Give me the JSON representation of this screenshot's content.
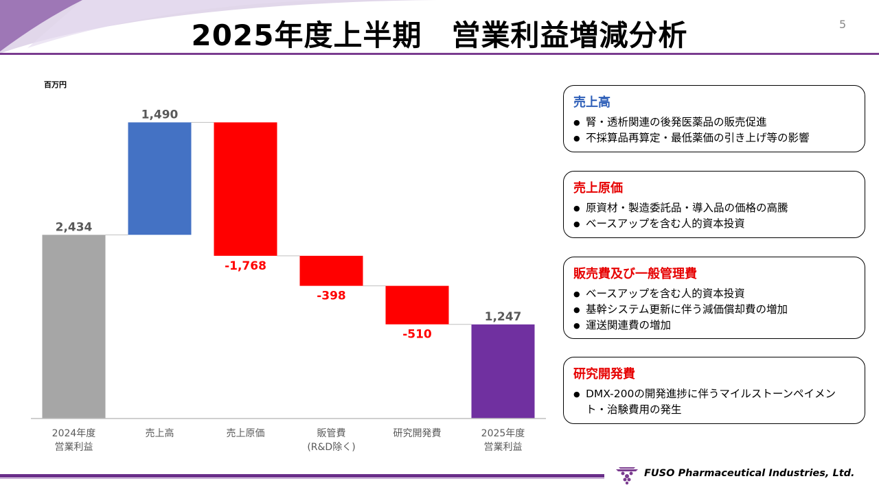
{
  "header": {
    "title": "2025年度上半期　営業利益増減分析",
    "page_number": "5"
  },
  "chart_data": {
    "type": "waterfall",
    "unit": "百万円",
    "ylim": [
      0,
      4000
    ],
    "items": [
      {
        "label_lines": [
          "2024年度",
          "営業利益"
        ],
        "value": 2434,
        "display": "2,434",
        "kind": "total",
        "color": "#a6a6a6",
        "label_color": "#595959"
      },
      {
        "label_lines": [
          "売上高"
        ],
        "value": 1490,
        "display": "1,490",
        "kind": "delta",
        "color": "#4472c4",
        "label_color": "#595959"
      },
      {
        "label_lines": [
          "売上原価"
        ],
        "value": -1768,
        "display": "-1,768",
        "kind": "delta",
        "color": "#ff0000",
        "label_color": "#ff0000"
      },
      {
        "label_lines": [
          "販管費",
          "(R&D除く)"
        ],
        "value": -398,
        "display": "-398",
        "kind": "delta",
        "color": "#ff0000",
        "label_color": "#ff0000"
      },
      {
        "label_lines": [
          "研究開発費"
        ],
        "value": -510,
        "display": "-510",
        "kind": "delta",
        "color": "#ff0000",
        "label_color": "#ff0000"
      },
      {
        "label_lines": [
          "2025年度",
          "営業利益"
        ],
        "value": 1247,
        "display": "1,247",
        "kind": "total",
        "color": "#7030a0",
        "label_color": "#595959"
      }
    ]
  },
  "boxes": [
    {
      "title": "売上高",
      "title_color": "#2e5fb8",
      "items": [
        "腎・透析関連の後発医薬品の販売促進",
        "不採算品再算定・最低薬価の引き上げ等の影響"
      ]
    },
    {
      "title": "売上原価",
      "title_color": "#e60000",
      "items": [
        "原資材・製造委託品・導入品の価格の高騰",
        "ベースアップを含む人的資本投資"
      ]
    },
    {
      "title": "販売費及び一般管理費",
      "title_color": "#e60000",
      "items": [
        "ベースアップを含む人的資本投資",
        "基幹システム更新に伴う減価償却費の増加",
        "運送関連費の増加"
      ]
    },
    {
      "title": "研究開発費",
      "title_color": "#e60000",
      "items": [
        "DMX-200の開発進捗に伴うマイルストーンペイメント・治験費用の発生"
      ]
    }
  ],
  "footer": {
    "company": "FUSO Pharmaceutical Industries, Ltd."
  }
}
